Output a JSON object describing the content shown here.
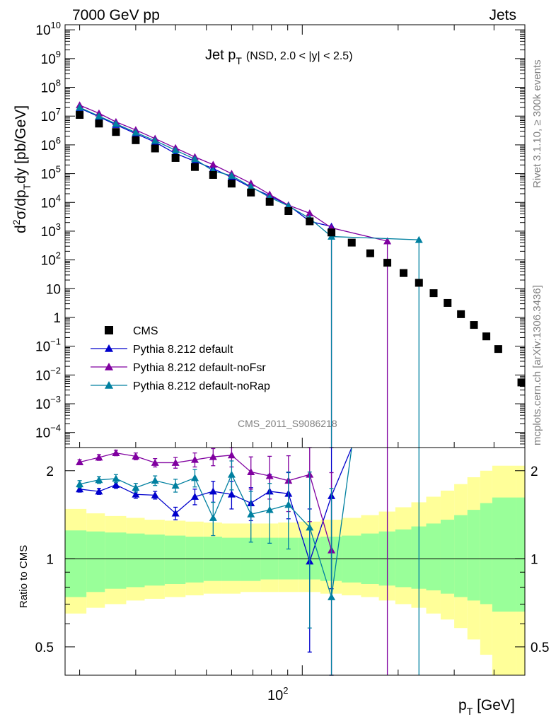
{
  "header": {
    "left": "7000 GeV pp",
    "right": "Jets"
  },
  "title": {
    "main": "Jet p",
    "main_sub": "T",
    "detail": "(NSD, 2.0 < |y| < 2.5)"
  },
  "side_labels": {
    "rivet": "Rivet 3.1.10, ≥ 300k events",
    "mcplots": "mcplots.cern.ch [arXiv:1306.3436]"
  },
  "watermark": "CMS_2011_S9086218",
  "ylabel_main": {
    "d": "d",
    "sup": "2",
    "sigma": "σ/dp",
    "sub": "T",
    "rest": "dy [pb/GeV]"
  },
  "ylabel_ratio": "Ratio to CMS",
  "xlabel": {
    "p": "p",
    "sub": "T",
    "rest": " [GeV]"
  },
  "xtick_main": "10",
  "xtick_sup": "2",
  "ytick_labels_main": [
    {
      "e": 10,
      "m": "10",
      "s": "10"
    },
    {
      "e": 9,
      "m": "10",
      "s": "9"
    },
    {
      "e": 8,
      "m": "10",
      "s": "8"
    },
    {
      "e": 7,
      "m": "10",
      "s": "7"
    },
    {
      "e": 6,
      "m": "10",
      "s": "6"
    },
    {
      "e": 5,
      "m": "10",
      "s": "5"
    },
    {
      "e": 4,
      "m": "10",
      "s": "4"
    },
    {
      "e": 3,
      "m": "10",
      "s": "3"
    },
    {
      "e": 2,
      "m": "10",
      "s": "2"
    },
    {
      "e": 1,
      "m": "10",
      "s": ""
    },
    {
      "e": 0,
      "m": "1",
      "s": ""
    },
    {
      "e": -1,
      "m": "10",
      "s": "−1"
    },
    {
      "e": -2,
      "m": "10",
      "s": "−2"
    },
    {
      "e": -3,
      "m": "10",
      "s": "−3"
    },
    {
      "e": -4,
      "m": "10",
      "s": "−4"
    }
  ],
  "ytick_labels_ratio": [
    {
      "v": 2,
      "t": "2"
    },
    {
      "v": 1,
      "t": "1"
    },
    {
      "v": 0.5,
      "t": "0.5"
    }
  ],
  "chart_data": {
    "type": "scatter",
    "xlabel": "p_T [GeV]",
    "ylabel": "d²σ/dp_T dy [pb/GeV]",
    "xscale": "log",
    "yscale": "log",
    "xlim": [
      18,
      500
    ],
    "ylim": [
      3e-05,
      15000000000
    ],
    "ratio_ylim": [
      0.4,
      2.4
    ],
    "legend_position": "lower-left",
    "bin_edges": [
      18,
      21,
      24,
      28,
      32,
      37,
      43,
      49,
      56,
      64,
      74,
      84,
      97,
      114,
      133,
      153,
      174,
      196,
      220,
      245,
      272,
      300,
      330,
      362,
      395,
      430,
      468,
      507
    ],
    "reference": {
      "name": "CMS",
      "color": "#000000",
      "x": [
        20,
        23,
        26,
        30,
        34.5,
        40,
        46,
        52.5,
        60,
        69,
        79,
        90.5,
        105.5,
        123.5,
        143,
        163.5,
        185,
        208,
        232.5,
        258.5,
        286,
        315,
        346,
        378.5,
        412.5,
        449,
        487.5
      ],
      "y": [
        11000000,
        5500000,
        2800000,
        1450000,
        750000,
        350000,
        170000,
        90000,
        45000,
        22000,
        10500,
        5000,
        2200,
        900,
        400,
        170,
        80,
        35,
        16,
        7,
        3.2,
        1.3,
        0.55,
        0.22,
        0.08,
        0,
        0.0055
      ],
      "stat_ratio_low": [
        0.74,
        0.77,
        0.79,
        0.8,
        0.81,
        0.82,
        0.83,
        0.84,
        0.84,
        0.84,
        0.85,
        0.85,
        0.85,
        0.84,
        0.83,
        0.82,
        0.81,
        0.8,
        0.79,
        0.78,
        0.76,
        0.74,
        0.72,
        0.7,
        0.66,
        0.66,
        0.66
      ],
      "stat_ratio_high": [
        1.25,
        1.24,
        1.23,
        1.22,
        1.21,
        1.2,
        1.19,
        1.19,
        1.18,
        1.18,
        1.18,
        1.18,
        1.18,
        1.19,
        1.2,
        1.22,
        1.24,
        1.26,
        1.29,
        1.32,
        1.36,
        1.41,
        1.47,
        1.55,
        1.62,
        1.62,
        1.62
      ],
      "total_ratio_low": [
        0.65,
        0.68,
        0.7,
        0.72,
        0.73,
        0.74,
        0.75,
        0.76,
        0.76,
        0.77,
        0.77,
        0.77,
        0.77,
        0.76,
        0.75,
        0.74,
        0.72,
        0.7,
        0.68,
        0.65,
        0.62,
        0.58,
        0.53,
        0.47,
        0.4,
        0.4,
        0.4
      ],
      "total_ratio_high": [
        1.48,
        1.43,
        1.4,
        1.38,
        1.36,
        1.35,
        1.34,
        1.33,
        1.32,
        1.32,
        1.32,
        1.33,
        1.34,
        1.36,
        1.38,
        1.41,
        1.45,
        1.5,
        1.56,
        1.63,
        1.71,
        1.8,
        1.9,
        2.0,
        2.08,
        2.08,
        2.08
      ]
    },
    "series": [
      {
        "name": "Pythia 8.212 default",
        "color": "#0000cc",
        "x": [
          20,
          23,
          26,
          30,
          34.5,
          40,
          46,
          52.5,
          60,
          69,
          79,
          90.5,
          105.5,
          123.5
        ],
        "y": [
          19000000,
          9500000,
          5000000,
          2450000,
          1250000,
          500000,
          270000,
          150000,
          75000,
          33000,
          17000,
          8000,
          2200,
          1450
        ],
        "ratio": [
          1.73,
          1.7,
          1.79,
          1.66,
          1.65,
          1.43,
          1.63,
          1.7,
          1.66,
          1.55,
          1.7,
          1.67,
          0.98,
          1.64
        ],
        "ratio_err": [
          0.04,
          0.04,
          0.05,
          0.05,
          0.05,
          0.07,
          0.1,
          0.14,
          0.18,
          0.2,
          0.24,
          0.3,
          0.5,
          0.85
        ],
        "tail": [
          [
            123.5,
            1.64
          ],
          [
            143,
            3.5
          ]
        ]
      },
      {
        "name": "Pythia 8.212 default-noFsr",
        "color": "#8000a0",
        "x": [
          20,
          23,
          26,
          30,
          34.5,
          40,
          46,
          52.5,
          60,
          69,
          79,
          90.5,
          105.5,
          123.5,
          185
        ],
        "y": [
          24000000,
          12500000,
          6300000,
          3300000,
          1650000,
          780000,
          380000,
          205000,
          100000,
          46000,
          19000,
          8000,
          4200,
          1300,
          450
        ],
        "ratio": [
          2.14,
          2.22,
          2.3,
          2.24,
          2.13,
          2.13,
          2.18,
          2.23,
          2.26,
          1.98,
          1.92,
          1.85,
          1.94,
          1.07,
          0.0
        ],
        "ratio_err": [
          0.04,
          0.05,
          0.05,
          0.06,
          0.07,
          0.09,
          0.12,
          0.15,
          0.2,
          0.25,
          0.32,
          0.4,
          0.6,
          0.9,
          0.9
        ],
        "tail": []
      },
      {
        "name": "Pythia 8.212 default-noRap",
        "color": "#0080a0",
        "x": [
          20,
          23,
          26,
          30,
          34.5,
          40,
          46,
          52.5,
          60,
          69,
          79,
          90.5,
          105.5,
          123.5,
          232.5
        ],
        "y": [
          20000000,
          10000000,
          5400000,
          2700000,
          1400000,
          650000,
          320000,
          125000,
          85000,
          35000,
          15000,
          7500,
          2800,
          650,
          500
        ],
        "ratio": [
          1.8,
          1.86,
          1.88,
          1.75,
          1.85,
          1.78,
          1.89,
          1.38,
          1.94,
          1.42,
          1.47,
          1.53,
          1.28,
          0.74,
          0.0
        ],
        "ratio_err": [
          0.05,
          0.05,
          0.06,
          0.06,
          0.07,
          0.09,
          0.13,
          0.18,
          0.22,
          0.28,
          0.34,
          0.45,
          0.7,
          1.0,
          1.0
        ],
        "tail": [
          [
            123.5,
            0.74
          ],
          [
            143,
            3.5
          ]
        ]
      }
    ]
  }
}
